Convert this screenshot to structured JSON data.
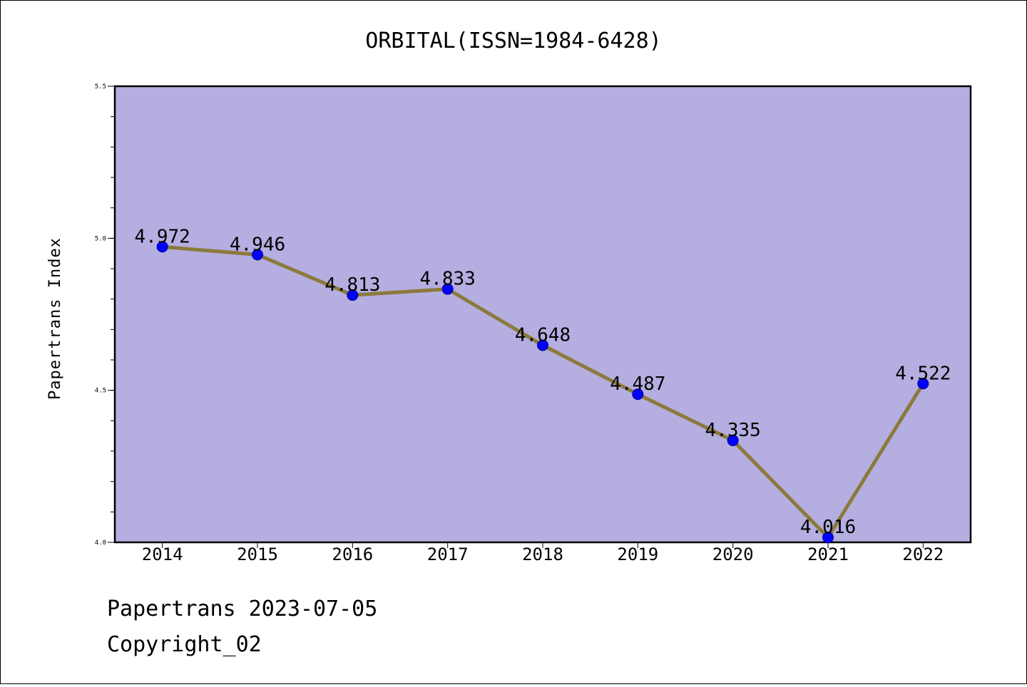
{
  "chart_data": {
    "type": "line",
    "title": "ORBITAL(ISSN=1984-6428)",
    "xlabel": "",
    "ylabel": "Papertrans Index",
    "categories": [
      "2014",
      "2015",
      "2016",
      "2017",
      "2018",
      "2019",
      "2020",
      "2021",
      "2022"
    ],
    "values": [
      4.972,
      4.946,
      4.813,
      4.833,
      4.648,
      4.487,
      4.335,
      4.016,
      4.522
    ],
    "data_labels": [
      "4.972",
      "4.946",
      "4.813",
      "4.833",
      "4.648",
      "4.487",
      "4.335",
      "4.016",
      "4.522"
    ],
    "ylim": [
      4.0,
      5.5
    ],
    "yticks": [
      "4.0",
      "4.5",
      "5.0",
      "5.5"
    ],
    "grid": false,
    "colors": {
      "plot_background": "#b5aee1",
      "line": "#8b7a3a",
      "marker": "#0000ff"
    }
  },
  "footer": {
    "line1": "Papertrans 2023-07-05",
    "line2": "Copyright_02"
  }
}
